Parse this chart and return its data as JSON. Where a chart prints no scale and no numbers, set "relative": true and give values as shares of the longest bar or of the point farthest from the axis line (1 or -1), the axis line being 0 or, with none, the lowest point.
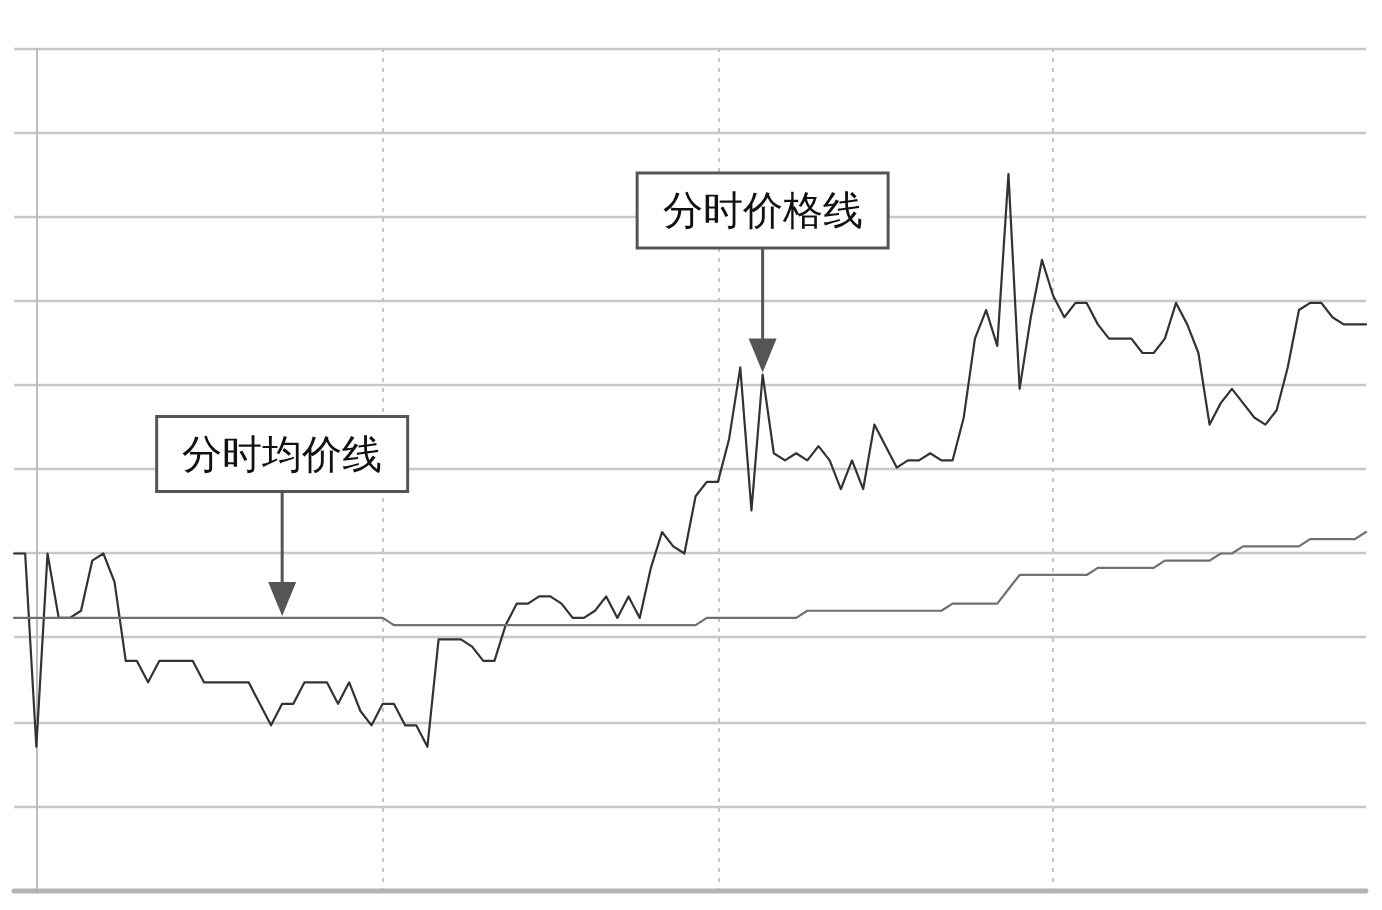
{
  "chart_data": {
    "type": "line",
    "relative": true,
    "grid": true,
    "categories": [
      null,
      null,
      null,
      null,
      null,
      null,
      null,
      null,
      null,
      null,
      null,
      null,
      null,
      null,
      null,
      null,
      null,
      null,
      null,
      null,
      null,
      null,
      null,
      null,
      null,
      null,
      null,
      null,
      null,
      null,
      null,
      null,
      null,
      null,
      null,
      null,
      null,
      null,
      null,
      null,
      null,
      null,
      null,
      null,
      null,
      null,
      null,
      null,
      null,
      null,
      null,
      null,
      null,
      null,
      null,
      null,
      null,
      null,
      null,
      null,
      null,
      null,
      null,
      null,
      null,
      null,
      null,
      null,
      null,
      null,
      null,
      null,
      null,
      null,
      null,
      null,
      null,
      null,
      null,
      null,
      null,
      null,
      null,
      null,
      null,
      null,
      null,
      null,
      null,
      null,
      null,
      null,
      null,
      null,
      null,
      null,
      null,
      null,
      null,
      null,
      null,
      null,
      null,
      null,
      null,
      null,
      null,
      null,
      null,
      null,
      null,
      null,
      null,
      null,
      null,
      null,
      null,
      null,
      null,
      null,
      null,
      null
    ],
    "series": [
      {
        "color": "#333333",
        "values": [
          0.47,
          0.47,
          0.2,
          0.47,
          0.38,
          0.38,
          0.39,
          0.46,
          0.47,
          0.43,
          0.32,
          0.32,
          0.29,
          0.32,
          0.32,
          0.32,
          0.32,
          0.29,
          0.29,
          0.29,
          0.29,
          0.29,
          0.26,
          0.23,
          0.26,
          0.26,
          0.29,
          0.29,
          0.29,
          0.26,
          0.29,
          0.25,
          0.23,
          0.26,
          0.26,
          0.23,
          0.23,
          0.2,
          0.35,
          0.35,
          0.35,
          0.34,
          0.32,
          0.32,
          0.37,
          0.4,
          0.4,
          0.41,
          0.41,
          0.4,
          0.38,
          0.38,
          0.39,
          0.41,
          0.38,
          0.41,
          0.38,
          0.45,
          0.5,
          0.48,
          0.47,
          0.55,
          0.57,
          0.57,
          0.63,
          0.73,
          0.53,
          0.72,
          0.61,
          0.6,
          0.61,
          0.6,
          0.62,
          0.6,
          0.56,
          0.6,
          0.56,
          0.65,
          0.62,
          0.59,
          0.6,
          0.6,
          0.61,
          0.6,
          0.6,
          0.66,
          0.77,
          0.81,
          0.76,
          1,
          0.7,
          0.8,
          0.88,
          0.83,
          0.8,
          0.82,
          0.82,
          0.79,
          0.77,
          0.77,
          0.77,
          0.75,
          0.75,
          0.77,
          0.82,
          0.79,
          0.75,
          0.65,
          0.68,
          0.7,
          0.68,
          0.66,
          0.65,
          0.67,
          0.73,
          0.81,
          0.82,
          0.82,
          0.8,
          0.79,
          0.79,
          0.79
        ]
      },
      {
        "color": "#707070",
        "values": [
          0.38,
          0.38,
          0.38,
          0.38,
          0.38,
          0.38,
          0.38,
          0.38,
          0.38,
          0.38,
          0.38,
          0.38,
          0.38,
          0.38,
          0.38,
          0.38,
          0.38,
          0.38,
          0.38,
          0.38,
          0.38,
          0.38,
          0.38,
          0.38,
          0.38,
          0.38,
          0.38,
          0.38,
          0.38,
          0.38,
          0.38,
          0.38,
          0.38,
          0.38,
          0.37,
          0.37,
          0.37,
          0.37,
          0.37,
          0.37,
          0.37,
          0.37,
          0.37,
          0.37,
          0.37,
          0.37,
          0.37,
          0.37,
          0.37,
          0.37,
          0.37,
          0.37,
          0.37,
          0.37,
          0.37,
          0.37,
          0.37,
          0.37,
          0.37,
          0.37,
          0.37,
          0.37,
          0.38,
          0.38,
          0.38,
          0.38,
          0.38,
          0.38,
          0.38,
          0.38,
          0.38,
          0.39,
          0.39,
          0.39,
          0.39,
          0.39,
          0.39,
          0.39,
          0.39,
          0.39,
          0.39,
          0.39,
          0.39,
          0.39,
          0.4,
          0.4,
          0.4,
          0.4,
          0.4,
          0.42,
          0.44,
          0.44,
          0.44,
          0.44,
          0.44,
          0.44,
          0.44,
          0.45,
          0.45,
          0.45,
          0.45,
          0.45,
          0.45,
          0.46,
          0.46,
          0.46,
          0.46,
          0.46,
          0.47,
          0.47,
          0.48,
          0.48,
          0.48,
          0.48,
          0.48,
          0.48,
          0.49,
          0.49,
          0.49,
          0.49,
          0.49,
          0.5
        ]
      }
    ],
    "annotations": [
      "分时价格线",
      "分时均价线"
    ]
  }
}
